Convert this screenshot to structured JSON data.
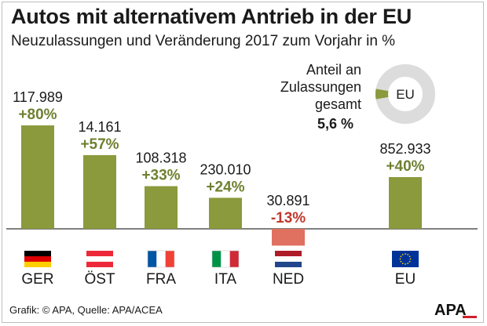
{
  "header": {
    "title": "Autos mit alternativem Antrieb in der EU",
    "subtitle": "Neuzulassungen und Veränderung 2017 zum Vorjahr in %"
  },
  "chart_data": {
    "type": "bar",
    "title": "Autos mit alternativem Antrieb in der EU",
    "subtitle": "Neuzulassungen und Veränderung 2017 zum Vorjahr in %",
    "categories": [
      "GER",
      "ÖST",
      "FRA",
      "ITA",
      "NED",
      "EU"
    ],
    "series": [
      {
        "values": [
          80,
          57,
          33,
          24,
          -13,
          40
        ],
        "value_labels": [
          "+80%",
          "+57%",
          "+33%",
          "+24%",
          "-13%",
          "+40%"
        ]
      }
    ],
    "registrations": [
      "117.989",
      "14.161",
      "108.318",
      "230.010",
      "30.891",
      "852.933"
    ],
    "ylim": [
      -13,
      80
    ],
    "grid": false,
    "colors": {
      "positive": "#8a9a3c",
      "negative": "#e07060",
      "positive_text": "#6e8030",
      "negative_text": "#c0392b"
    },
    "flags": [
      "germany-flag-icon",
      "austria-flag-icon",
      "france-flag-icon",
      "italy-flag-icon",
      "netherlands-flag-icon",
      "eu-flag-icon"
    ],
    "share": {
      "label_lines": [
        "Anteil an",
        "Zulassungen",
        "gesamt"
      ],
      "value": "5,6 %",
      "fraction": 0.056,
      "center_label": "EU"
    }
  },
  "footer": {
    "credit": "Grafik: © APA, Quelle: APA/ACEA",
    "logo": "APA"
  }
}
